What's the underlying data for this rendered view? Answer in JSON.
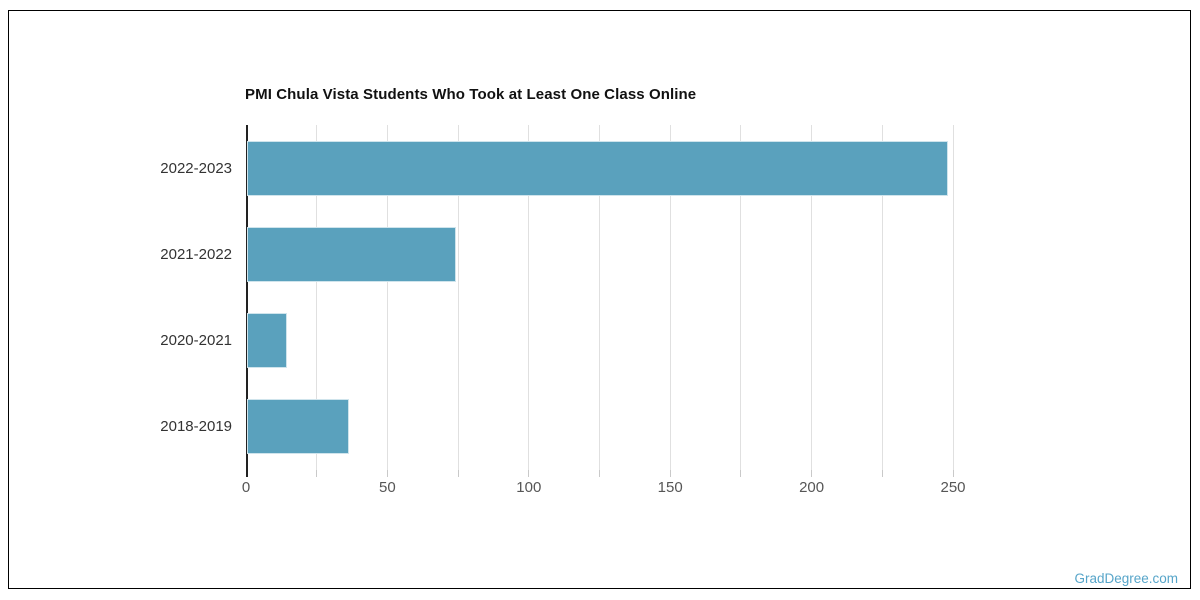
{
  "chart_data": {
    "type": "bar",
    "orientation": "horizontal",
    "title": "PMI Chula Vista Students Who Took at Least One Class Online",
    "categories": [
      "2022-2023",
      "2021-2022",
      "2020-2021",
      "2018-2019"
    ],
    "values": [
      248,
      74,
      14,
      36
    ],
    "xlabel": "",
    "ylabel": "",
    "xlim": [
      0,
      250
    ],
    "x_major_ticks": [
      "0",
      "50",
      "100",
      "150",
      "200",
      "250"
    ],
    "x_major_tick_values": [
      0,
      50,
      100,
      150,
      200,
      250
    ],
    "x_minor_tick_step": 25,
    "grid": true,
    "legend": false,
    "colors": {
      "bar_fill": "#5aa1bd",
      "bar_stroke": "#cfe4ec",
      "gridline": "#e0e0e0",
      "tick_mark": "#c9c9c9",
      "axis_line": "#222222",
      "tick_label": "#565656",
      "category_label": "#333333",
      "title": "#111111",
      "frame_border": "#000000",
      "background": "#ffffff"
    }
  },
  "watermark": {
    "text": "GradDegree.com",
    "color": "#57a5c9"
  }
}
